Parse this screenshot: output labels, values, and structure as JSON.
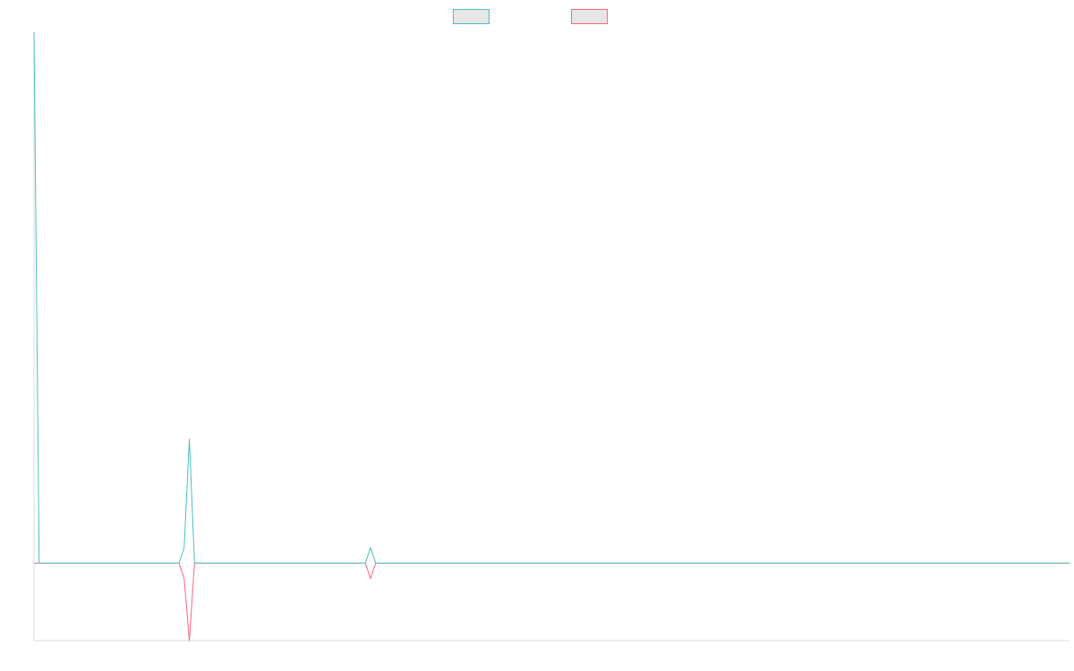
{
  "chart_data": {
    "type": "line",
    "title": "",
    "xlabel": "",
    "ylabel": "",
    "grid": false,
    "legend_position": "top-center",
    "x": [
      0,
      1,
      2,
      3,
      4,
      5,
      6,
      7,
      8,
      9,
      10,
      11,
      12,
      13,
      14,
      15,
      16,
      17,
      18,
      19,
      20,
      21,
      22,
      23,
      24,
      25,
      26,
      27,
      28,
      29,
      30,
      31,
      32,
      33,
      34,
      35,
      36,
      37,
      38,
      39,
      40,
      41,
      42,
      43,
      44,
      45,
      46,
      47,
      48,
      49,
      50,
      51,
      52,
      53,
      54,
      55,
      56,
      57,
      58,
      59,
      60,
      61,
      62,
      63,
      64,
      65,
      66,
      67,
      68,
      69,
      70,
      71,
      72,
      73,
      74,
      75,
      76,
      77,
      78,
      79,
      80,
      81,
      82,
      83,
      84,
      85,
      86,
      87,
      88,
      89,
      90,
      91,
      92,
      93,
      94,
      95,
      96,
      97,
      98,
      99,
      100,
      101,
      102,
      103,
      104,
      105,
      106,
      107,
      108,
      109,
      110,
      111,
      112,
      113,
      114,
      115,
      116,
      117,
      118,
      119,
      120,
      121,
      122,
      123,
      124,
      125,
      126,
      127,
      128,
      129,
      130,
      131,
      132,
      133,
      134,
      135,
      136,
      137,
      138,
      139,
      140,
      141,
      142,
      143,
      144,
      145,
      146,
      147,
      148,
      149,
      150,
      151,
      152,
      153,
      154,
      155,
      156,
      157,
      158,
      159,
      160,
      161,
      162,
      163,
      164,
      165,
      166,
      167,
      168,
      169,
      170,
      171,
      172,
      173,
      174,
      175,
      176,
      177,
      178,
      179,
      180,
      181,
      182,
      183,
      184,
      185,
      186,
      187,
      188,
      189,
      190,
      191,
      192,
      193,
      194,
      195,
      196,
      197,
      198,
      199,
      200
    ],
    "ylim": [
      -20,
      137
    ],
    "series": [
      {
        "color": "#4bc0c0",
        "values": [
          137,
          0,
          0,
          0,
          0,
          0,
          0,
          0,
          0,
          0,
          0,
          0,
          0,
          0,
          0,
          0,
          0,
          0,
          0,
          0,
          0,
          0,
          0,
          0,
          0,
          0,
          0,
          0,
          0,
          4,
          32,
          0,
          0,
          0,
          0,
          0,
          0,
          0,
          0,
          0,
          0,
          0,
          0,
          0,
          0,
          0,
          0,
          0,
          0,
          0,
          0,
          0,
          0,
          0,
          0,
          0,
          0,
          0,
          0,
          0,
          0,
          0,
          0,
          0,
          0,
          4,
          0,
          0,
          0,
          0,
          0,
          0,
          0,
          0,
          0,
          0,
          0,
          0,
          0,
          0,
          0,
          0,
          0,
          0,
          0,
          0,
          0,
          0,
          0,
          0,
          0,
          0,
          0,
          0,
          0,
          0,
          0,
          0,
          0,
          0,
          0,
          0,
          0,
          0,
          0,
          0,
          0,
          0,
          0,
          0,
          0,
          0,
          0,
          0,
          0,
          0,
          0,
          0,
          0,
          0,
          0,
          0,
          0,
          0,
          0,
          0,
          0,
          0,
          0,
          0,
          0,
          0,
          0,
          0,
          0,
          0,
          0,
          0,
          0,
          0,
          0,
          0,
          0,
          0,
          0,
          0,
          0,
          0,
          0,
          0,
          0,
          0,
          0,
          0,
          0,
          0,
          0,
          0,
          0,
          0,
          0,
          0,
          0,
          0,
          0,
          0,
          0,
          0,
          0,
          0,
          0,
          0,
          0,
          0,
          0,
          0,
          0,
          0,
          0,
          0,
          0,
          0,
          0,
          0,
          0,
          0,
          0,
          0,
          0,
          0,
          0,
          0,
          0,
          0,
          0,
          0,
          0,
          0,
          0,
          0,
          0
        ]
      },
      {
        "color": "#ff6384",
        "values": [
          0,
          0,
          0,
          0,
          0,
          0,
          0,
          0,
          0,
          0,
          0,
          0,
          0,
          0,
          0,
          0,
          0,
          0,
          0,
          0,
          0,
          0,
          0,
          0,
          0,
          0,
          0,
          0,
          0,
          -4,
          -20,
          0,
          0,
          0,
          0,
          0,
          0,
          0,
          0,
          0,
          0,
          0,
          0,
          0,
          0,
          0,
          0,
          0,
          0,
          0,
          0,
          0,
          0,
          0,
          0,
          0,
          0,
          0,
          0,
          0,
          0,
          0,
          0,
          0,
          0,
          -4,
          0,
          0,
          0,
          0,
          0,
          0,
          0,
          0,
          0,
          0,
          0,
          0,
          0,
          0,
          0,
          0,
          0,
          0,
          0,
          0,
          0,
          0,
          0,
          0,
          0,
          0,
          0,
          0,
          0,
          0,
          0,
          0,
          0,
          0,
          0,
          0,
          0,
          0,
          0,
          0,
          0,
          0,
          0,
          0,
          0,
          0,
          0,
          0,
          0,
          0,
          0,
          0,
          0,
          0,
          0,
          0,
          0,
          0,
          0,
          0,
          0,
          0,
          0,
          0,
          0,
          0,
          0,
          0,
          0,
          0,
          0,
          0,
          0,
          0,
          0,
          0,
          0,
          0,
          0,
          0,
          0,
          0,
          0,
          0,
          0,
          0,
          0,
          0,
          0,
          0,
          0,
          0,
          0,
          0,
          0,
          0,
          0,
          0,
          0,
          0,
          0,
          0,
          0,
          0,
          0,
          0,
          0,
          0,
          0,
          0,
          0,
          0,
          0,
          0,
          0,
          0,
          0,
          0,
          0,
          0,
          0,
          0,
          0,
          0,
          0,
          0,
          0,
          0,
          0,
          0,
          0,
          0,
          0,
          0,
          0
        ]
      }
    ]
  },
  "legend": {
    "items": [
      {
        "color": "#4bc0c0",
        "fill": "#e6e6e6",
        "icon": "legend-swatch"
      },
      {
        "color": "#ff6384",
        "fill": "#e6e6e6",
        "icon": "legend-swatch"
      }
    ]
  }
}
